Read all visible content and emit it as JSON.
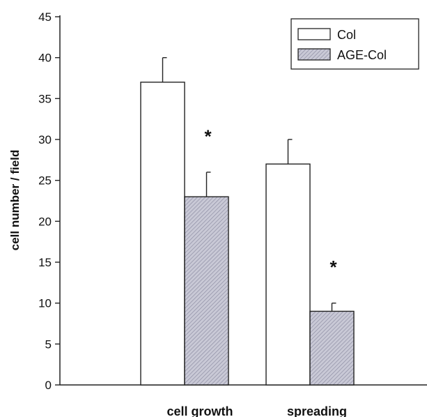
{
  "chart_data": {
    "type": "bar",
    "title": "",
    "xlabel": "",
    "ylabel": "cell number / field",
    "ylim": [
      0,
      45
    ],
    "yticks": [
      0,
      5,
      10,
      15,
      20,
      25,
      30,
      35,
      40,
      45
    ],
    "categories": [
      "cell growth",
      "spreading"
    ],
    "series": [
      {
        "name": "Col",
        "values": [
          37,
          27
        ],
        "errors": [
          3,
          3
        ],
        "fill": "#ffffff"
      },
      {
        "name": "AGE-Col",
        "values": [
          23,
          9
        ],
        "errors": [
          3,
          1
        ],
        "fill": "#c9c9d6"
      }
    ],
    "annotations": [
      {
        "text": "*",
        "category": 0,
        "series": 1,
        "y": 31
      },
      {
        "text": "*",
        "category": 1,
        "series": 1,
        "y": 15
      }
    ],
    "legend_position": "top-right",
    "grid": false
  }
}
